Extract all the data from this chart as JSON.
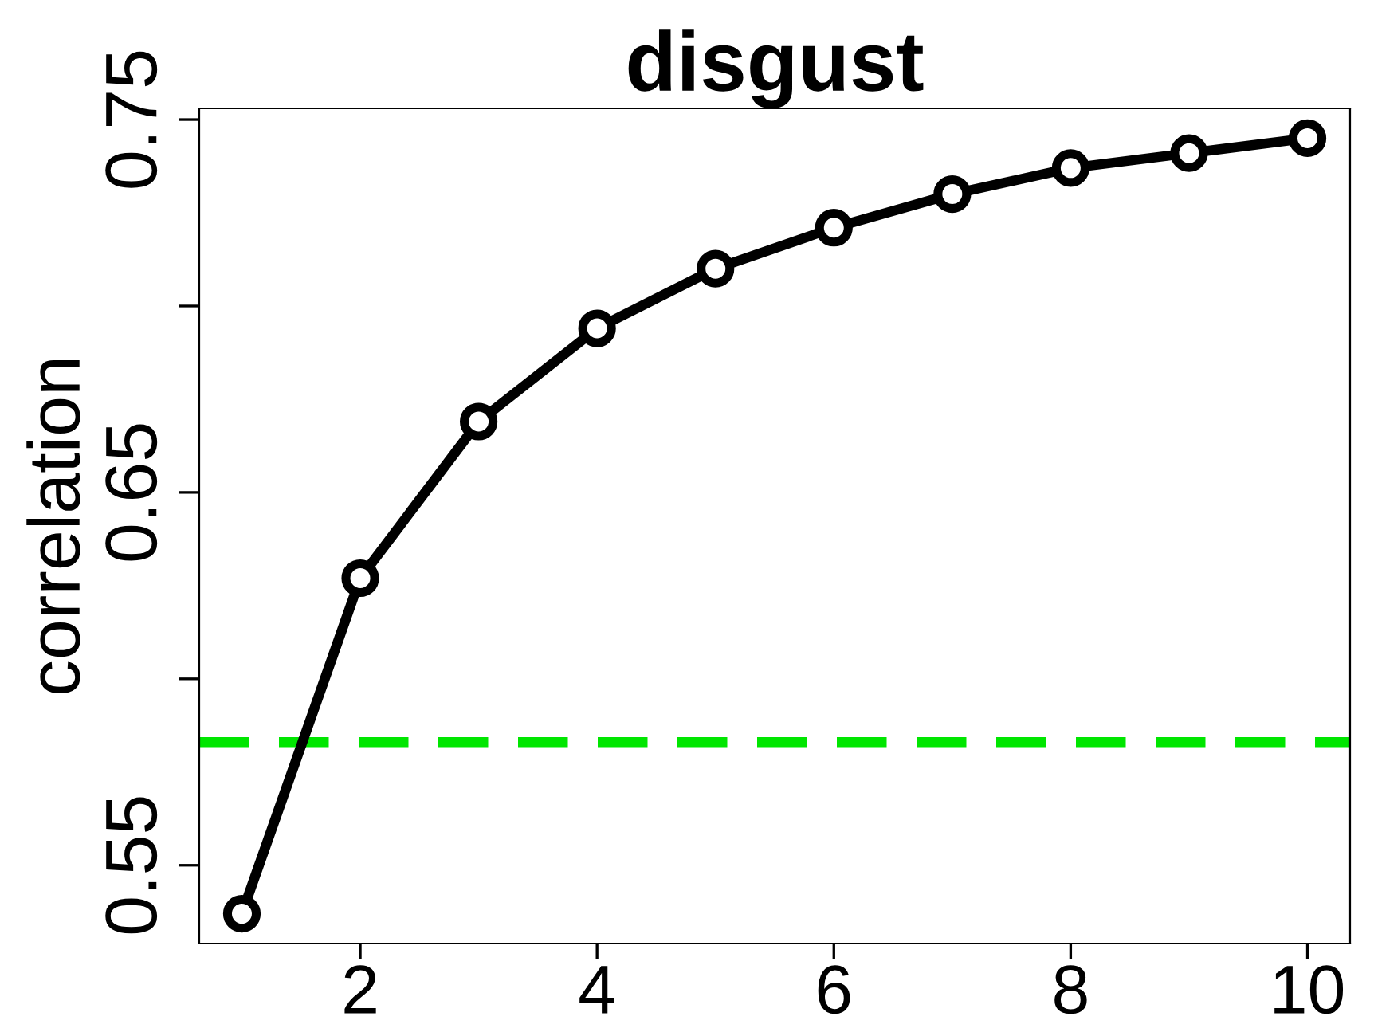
{
  "chart_data": {
    "type": "line",
    "title": "disgust",
    "ylabel": "correlation",
    "x": [
      1,
      2,
      3,
      4,
      5,
      6,
      7,
      8,
      9,
      10
    ],
    "series": [
      {
        "color": "#000000",
        "values": [
          0.537,
          0.627,
          0.669,
          0.694,
          0.71,
          0.721,
          0.73,
          0.737,
          0.741,
          0.745
        ]
      }
    ],
    "xlim": [
      0.64,
      10.36
    ],
    "xticks": [
      2,
      4,
      6,
      8,
      10
    ],
    "ylim": [
      0.529,
      0.753
    ],
    "yticks": [
      0.55,
      {
        "value": 0.6,
        "label": null
      },
      0.65,
      {
        "value": 0.7,
        "label": null
      },
      0.75
    ],
    "ref_lines": [
      {
        "axis": "y",
        "value": 0.583,
        "color": "#00e600",
        "line_style": "dashed"
      }
    ],
    "marker": "circle",
    "line_style": "solid",
    "grid": false,
    "legend": false
  }
}
